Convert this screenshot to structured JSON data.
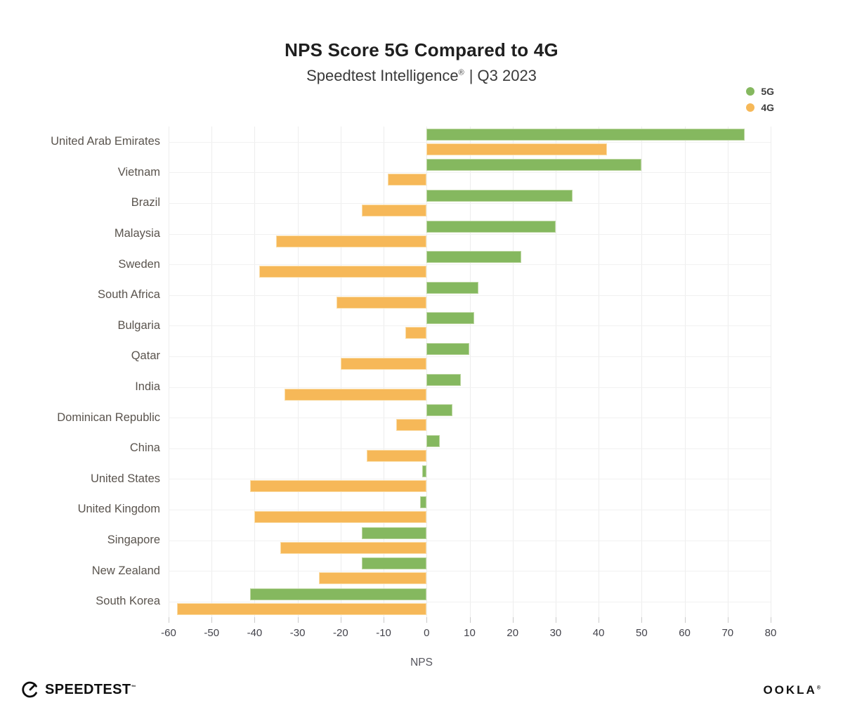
{
  "title": "NPS Score 5G Compared to 4G",
  "subtitle": {
    "brand": "Speedtest Intelligence",
    "reg": "®",
    "rest": "| Q3 2023"
  },
  "legend": [
    {
      "label": "5G",
      "color": "#85b85f"
    },
    {
      "label": "4G",
      "color": "#f6b858"
    }
  ],
  "footer": {
    "speedtest_label": "SPEEDTEST",
    "speedtest_mark": "™",
    "ookla_label": "OOKLA",
    "ookla_mark": "®"
  },
  "chart_data": {
    "type": "bar",
    "orientation": "horizontal",
    "title": "NPS Score 5G Compared to 4G",
    "subtitle": "Speedtest Intelligence® | Q3 2023",
    "xlabel": "NPS",
    "ylabel": "",
    "xlim": [
      -60,
      80
    ],
    "xticks": [
      -60,
      -50,
      -40,
      -30,
      -20,
      -10,
      0,
      10,
      20,
      30,
      40,
      50,
      60,
      70,
      80
    ],
    "grid": true,
    "legend_position": "top-right",
    "categories": [
      "United Arab Emirates",
      "Vietnam",
      "Brazil",
      "Malaysia",
      "Sweden",
      "South Africa",
      "Bulgaria",
      "Qatar",
      "India",
      "Dominican Republic",
      "China",
      "United States",
      "United Kingdom",
      "Singapore",
      "New Zealand",
      "South Korea"
    ],
    "series": [
      {
        "name": "5G",
        "color": "#85b85f",
        "border_color": "#bcd6a0",
        "values": [
          74,
          50,
          34,
          30,
          22,
          12,
          11,
          10,
          8,
          6,
          3,
          -1,
          -1.5,
          -15,
          -15,
          -41
        ]
      },
      {
        "name": "4G",
        "color": "#f6b858",
        "border_color": "#fadda7",
        "values": [
          42,
          -9,
          -15,
          -35,
          -39,
          -21,
          -5,
          -20,
          -33,
          -7,
          -14,
          -41,
          -40,
          -34,
          -25,
          -58
        ]
      }
    ]
  }
}
